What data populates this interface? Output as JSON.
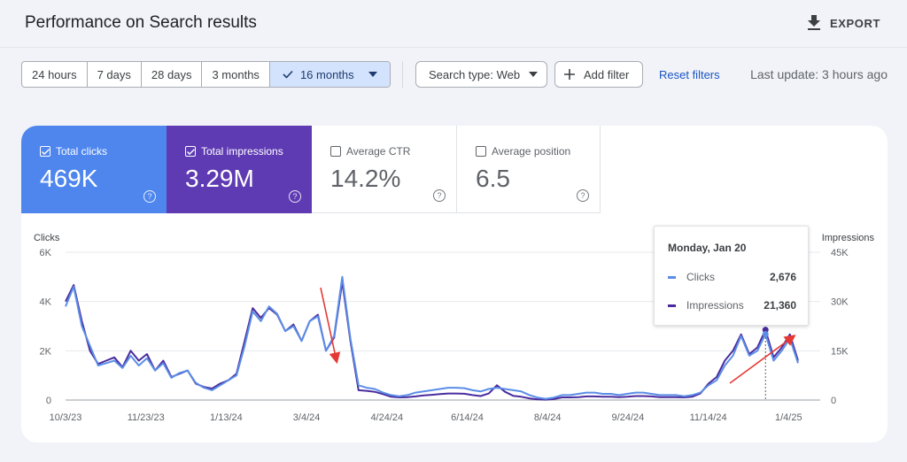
{
  "header": {
    "title": "Performance on Search results",
    "export_label": "EXPORT",
    "export_icon": "download-icon"
  },
  "date_range": {
    "options": [
      {
        "label": "24 hours",
        "active": false
      },
      {
        "label": "7 days",
        "active": false
      },
      {
        "label": "28 days",
        "active": false
      },
      {
        "label": "3 months",
        "active": false
      },
      {
        "label": "16 months",
        "active": true
      }
    ]
  },
  "filters": {
    "search_type_label": "Search type: Web",
    "add_filter_label": "Add filter",
    "reset_label": "Reset filters",
    "last_update": "Last update: 3 hours ago"
  },
  "metrics": {
    "total_clicks": {
      "label": "Total clicks",
      "value": "469K",
      "checked": true,
      "color": "#4f86ee"
    },
    "total_impressions": {
      "label": "Total impressions",
      "value": "3.29M",
      "checked": true,
      "color": "#5e3bb3"
    },
    "average_ctr": {
      "label": "Average CTR",
      "value": "14.2%",
      "checked": false
    },
    "average_position": {
      "label": "Average position",
      "value": "6.5",
      "checked": false
    },
    "help_glyph": "?"
  },
  "tooltip": {
    "date": "Monday, Jan 20",
    "clicks_label": "Clicks",
    "clicks_value": "2,676",
    "impressions_label": "Impressions",
    "impressions_value": "21,360"
  },
  "chart_data": {
    "type": "line",
    "left_axis_title": "Clicks",
    "right_axis_title": "Impressions",
    "left_ticks": [
      "0",
      "2K",
      "4K",
      "6K"
    ],
    "right_ticks": [
      "0",
      "15K",
      "30K",
      "45K"
    ],
    "ylim_left": [
      0,
      6000
    ],
    "ylim_right": [
      0,
      45000
    ],
    "x_tick_labels": [
      "10/3/23",
      "11/23/23",
      "1/13/24",
      "3/4/24",
      "4/24/24",
      "6/14/24",
      "8/4/24",
      "9/24/24",
      "11/14/24",
      "1/4/25"
    ],
    "grid": true,
    "series": [
      {
        "name": "Clicks",
        "axis": "left",
        "color": "#5b8de6",
        "values": [
          3800,
          4600,
          3000,
          2200,
          1400,
          1500,
          1600,
          1300,
          1800,
          1400,
          1700,
          1200,
          1500,
          900,
          1100,
          1200,
          700,
          500,
          400,
          600,
          800,
          1000,
          2200,
          3600,
          3200,
          3800,
          3500,
          2800,
          3000,
          2400,
          3200,
          3400,
          2000,
          2600,
          5000,
          2500,
          600,
          500,
          450,
          300,
          200,
          150,
          200,
          300,
          350,
          400,
          450,
          500,
          500,
          480,
          400,
          350,
          450,
          500,
          450,
          400,
          350,
          200,
          100,
          50,
          100,
          200,
          200,
          250,
          300,
          300,
          250,
          250,
          200,
          250,
          300,
          300,
          250,
          200,
          200,
          200,
          150,
          200,
          300,
          600,
          800,
          1400,
          1800,
          2600,
          1800,
          2000,
          2676,
          1600,
          2000,
          2500,
          1500
        ]
      },
      {
        "name": "Impressions",
        "axis": "right",
        "color": "#4a2c9e",
        "values": [
          30000,
          35000,
          24000,
          15000,
          11000,
          12000,
          13000,
          10000,
          15000,
          12000,
          14000,
          9000,
          12000,
          7000,
          8000,
          9000,
          5000,
          4000,
          3500,
          5000,
          6000,
          8000,
          18000,
          28000,
          25000,
          28000,
          26000,
          21000,
          23000,
          18000,
          24000,
          26000,
          15000,
          19000,
          36000,
          18000,
          3000,
          2800,
          2500,
          1800,
          1000,
          800,
          900,
          1100,
          1400,
          1600,
          1800,
          2000,
          2000,
          1900,
          1500,
          1200,
          2000,
          4500,
          2500,
          1300,
          1000,
          500,
          200,
          100,
          300,
          800,
          800,
          900,
          1100,
          1100,
          1000,
          1000,
          900,
          1000,
          1200,
          1200,
          1100,
          900,
          900,
          900,
          800,
          1000,
          2000,
          5000,
          7000,
          12000,
          15000,
          20000,
          14000,
          16000,
          21360,
          13000,
          16000,
          20000,
          12000
        ]
      }
    ],
    "selected_index": 86
  }
}
